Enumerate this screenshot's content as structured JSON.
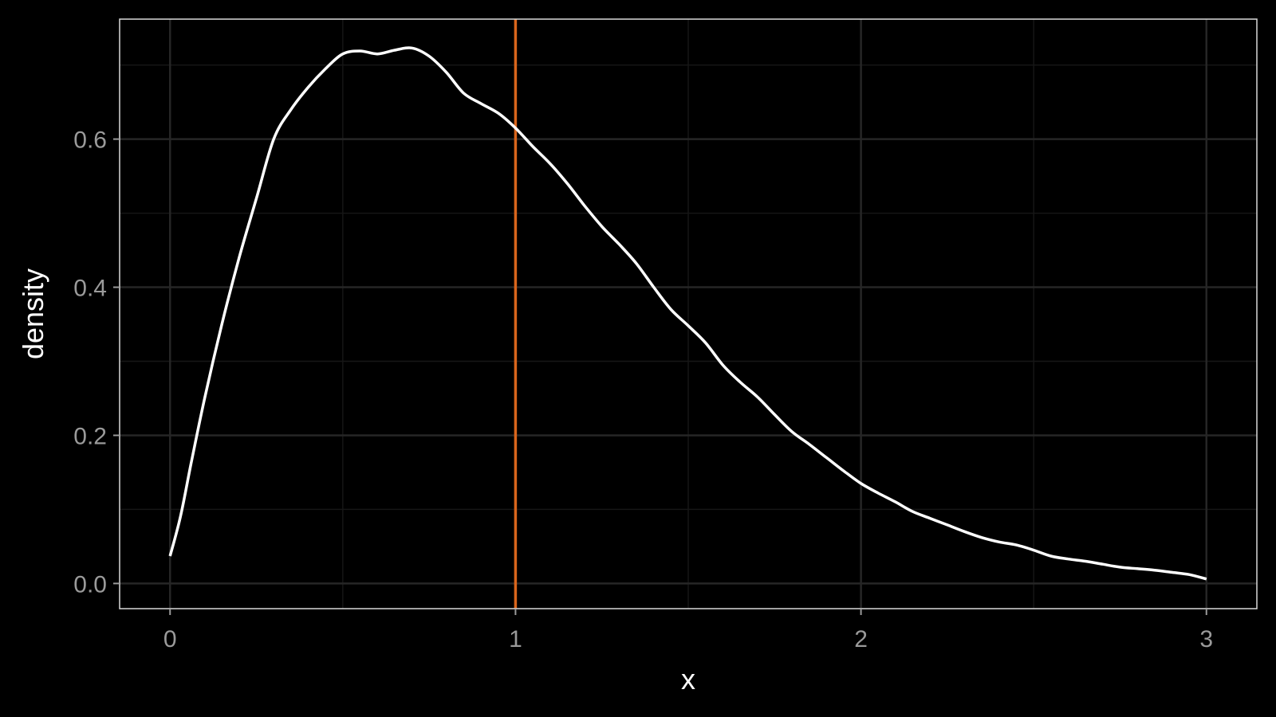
{
  "chart_data": {
    "type": "line",
    "title": "",
    "xlabel": "x",
    "ylabel": "density",
    "xlim": [
      -0.146,
      3.146
    ],
    "ylim": [
      -0.034,
      0.762
    ],
    "x_ticks": [
      0,
      1,
      2,
      3
    ],
    "x_tick_labels": [
      "0",
      "1",
      "2",
      "3"
    ],
    "y_ticks": [
      0.0,
      0.2,
      0.4,
      0.6
    ],
    "y_tick_labels": [
      "0.0",
      "0.2",
      "0.4",
      "0.6"
    ],
    "grid": true,
    "theme": {
      "background": "#000000",
      "panel_border": "#d9d9d9",
      "grid_major": "#262626",
      "grid_minor": "#161616",
      "line_color": "#ffffff",
      "vline_color": "#d9651c"
    },
    "vline": {
      "x": 1.0
    },
    "series": [
      {
        "x": [
          0.0,
          0.03,
          0.06,
          0.1,
          0.15,
          0.2,
          0.25,
          0.3,
          0.35,
          0.4,
          0.45,
          0.5,
          0.55,
          0.6,
          0.65,
          0.7,
          0.75,
          0.8,
          0.85,
          0.9,
          0.95,
          1.0,
          1.05,
          1.1,
          1.15,
          1.2,
          1.25,
          1.3,
          1.35,
          1.4,
          1.45,
          1.5,
          1.55,
          1.6,
          1.65,
          1.7,
          1.75,
          1.8,
          1.85,
          1.9,
          1.95,
          2.0,
          2.05,
          2.1,
          2.15,
          2.2,
          2.25,
          2.3,
          2.35,
          2.4,
          2.45,
          2.5,
          2.55,
          2.6,
          2.65,
          2.7,
          2.75,
          2.8,
          2.85,
          2.9,
          2.95,
          3.0
        ],
        "y": [
          0.037,
          0.09,
          0.16,
          0.25,
          0.35,
          0.44,
          0.52,
          0.6,
          0.64,
          0.67,
          0.695,
          0.715,
          0.719,
          0.715,
          0.72,
          0.723,
          0.712,
          0.69,
          0.662,
          0.648,
          0.635,
          0.615,
          0.59,
          0.567,
          0.54,
          0.51,
          0.482,
          0.458,
          0.432,
          0.4,
          0.37,
          0.348,
          0.325,
          0.295,
          0.272,
          0.252,
          0.228,
          0.205,
          0.188,
          0.17,
          0.152,
          0.135,
          0.122,
          0.11,
          0.097,
          0.088,
          0.079,
          0.07,
          0.062,
          0.056,
          0.052,
          0.045,
          0.037,
          0.033,
          0.03,
          0.026,
          0.022,
          0.02,
          0.018,
          0.015,
          0.012,
          0.006
        ]
      }
    ]
  }
}
